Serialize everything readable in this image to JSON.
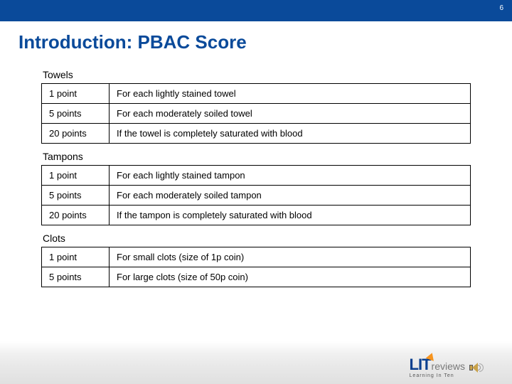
{
  "page_number": "6",
  "title": "Introduction: PBAC Score",
  "colors": {
    "banner": "#0a4a9a",
    "title": "#0a4a9a",
    "border": "#000000",
    "logo_primary": "#0a3f8f",
    "logo_accent": "#f7941e",
    "logo_secondary": "#7a7a7a"
  },
  "sections": [
    {
      "label": "Towels",
      "rows": [
        {
          "points": "1 point",
          "desc": "For each lightly stained towel"
        },
        {
          "points": "5 points",
          "desc": "For each moderately soiled towel"
        },
        {
          "points": "20 points",
          "desc": "If the towel is completely saturated with blood"
        }
      ]
    },
    {
      "label": "Tampons",
      "rows": [
        {
          "points": "1 point",
          "desc": "For each lightly stained tampon"
        },
        {
          "points": "5 points",
          "desc": "For each moderately soiled tampon"
        },
        {
          "points": "20 points",
          "desc": "If the tampon is completely saturated with blood"
        }
      ]
    },
    {
      "label": "Clots",
      "rows": [
        {
          "points": "1 point",
          "desc": "For small clots (size of 1p coin)"
        },
        {
          "points": "5 points",
          "desc": "For large clots (size of 50p coin)"
        }
      ]
    }
  ],
  "logo": {
    "main": "LIT",
    "sub": "reviews",
    "tagline": "Learning In Ten"
  }
}
